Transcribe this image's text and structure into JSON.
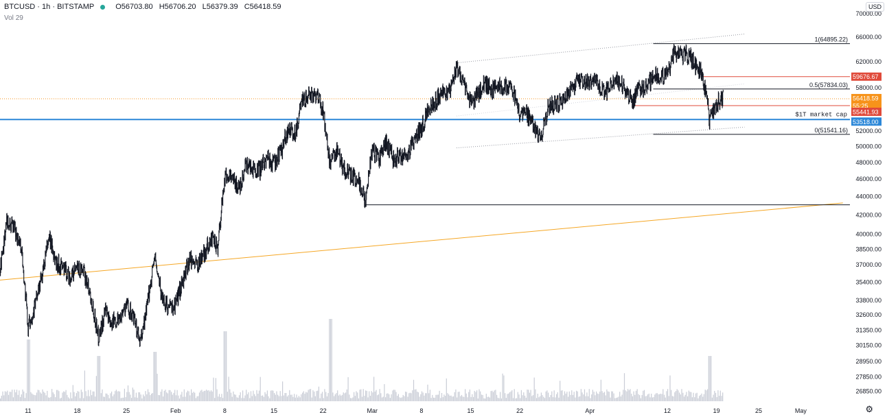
{
  "header": {
    "symbol": "BTCUSD",
    "interval": "1h",
    "exchange": "BITSTAMP",
    "status_color": "#26a69a",
    "ohlc": [
      {
        "key": "O",
        "value": "56703.80"
      },
      {
        "key": "H",
        "value": "56706.20"
      },
      {
        "key": "L",
        "value": "56379.39"
      },
      {
        "key": "C",
        "value": "56418.59"
      }
    ],
    "volume_label": "Vol",
    "volume_value": "29"
  },
  "currency_badge": "USD",
  "settings_icon": "gear-icon",
  "chart_data": {
    "type": "candlestick",
    "title": "",
    "price_axis": {
      "scale": "log",
      "tick_labels": [
        "70000.00",
        "66000.00",
        "62000.00",
        "58000.00",
        "56000.00",
        "52000.00",
        "50000.00",
        "48000.00",
        "46000.00",
        "44000.00",
        "42000.00",
        "40000.00",
        "38500.00",
        "37000.00",
        "35400.00",
        "33800.00",
        "32600.00",
        "31350.00",
        "30150.00",
        "28950.00",
        "27850.00",
        "26850.00"
      ],
      "range": [
        26400,
        71000
      ]
    },
    "time_axis": {
      "tick_labels": [
        "11",
        "18",
        "25",
        "Feb",
        "8",
        "15",
        "22",
        "Mar",
        "8",
        "15",
        "22",
        "Apr",
        "12",
        "19",
        "25",
        "May"
      ],
      "range": [
        "2021-01-07",
        "2021-05-08"
      ]
    },
    "price_path": [
      [
        "2021-01-07",
        36500
      ],
      [
        "2021-01-08",
        41500
      ],
      [
        "2021-01-09",
        40500
      ],
      [
        "2021-01-10",
        39000
      ],
      [
        "2021-01-11",
        31500
      ],
      [
        "2021-01-12",
        33500
      ],
      [
        "2021-01-13",
        36000
      ],
      [
        "2021-01-14",
        39800
      ],
      [
        "2021-01-15",
        37200
      ],
      [
        "2021-01-16",
        36800
      ],
      [
        "2021-01-17",
        35800
      ],
      [
        "2021-01-18",
        36600
      ],
      [
        "2021-01-19",
        36200
      ],
      [
        "2021-01-20",
        34000
      ],
      [
        "2021-01-21",
        30800
      ],
      [
        "2021-01-22",
        32800
      ],
      [
        "2021-01-23",
        32000
      ],
      [
        "2021-01-24",
        32400
      ],
      [
        "2021-01-25",
        33500
      ],
      [
        "2021-01-26",
        32300
      ],
      [
        "2021-01-27",
        30300
      ],
      [
        "2021-01-28",
        33500
      ],
      [
        "2021-01-29",
        37800
      ],
      [
        "2021-01-30",
        34200
      ],
      [
        "2021-01-31",
        33100
      ],
      [
        "2021-02-01",
        33500
      ],
      [
        "2021-02-02",
        35500
      ],
      [
        "2021-02-03",
        37600
      ],
      [
        "2021-02-04",
        37000
      ],
      [
        "2021-02-05",
        38000
      ],
      [
        "2021-02-06",
        39500
      ],
      [
        "2021-02-07",
        38800
      ],
      [
        "2021-02-08",
        46200
      ],
      [
        "2021-02-09",
        46500
      ],
      [
        "2021-02-10",
        44800
      ],
      [
        "2021-02-11",
        47800
      ],
      [
        "2021-02-12",
        47300
      ],
      [
        "2021-02-13",
        47100
      ],
      [
        "2021-02-14",
        48600
      ],
      [
        "2021-02-15",
        47800
      ],
      [
        "2021-02-16",
        49200
      ],
      [
        "2021-02-17",
        52200
      ],
      [
        "2021-02-18",
        51700
      ],
      [
        "2021-02-19",
        55900
      ],
      [
        "2021-02-20",
        56900
      ],
      [
        "2021-02-21",
        57200
      ],
      [
        "2021-02-22",
        54500
      ],
      [
        "2021-02-23",
        47500
      ],
      [
        "2021-02-24",
        49700
      ],
      [
        "2021-02-25",
        47000
      ],
      [
        "2021-02-26",
        46300
      ],
      [
        "2021-02-27",
        46100
      ],
      [
        "2021-02-28",
        43500
      ],
      [
        "2021-03-01",
        49600
      ],
      [
        "2021-03-02",
        48400
      ],
      [
        "2021-03-03",
        50500
      ],
      [
        "2021-03-04",
        48400
      ],
      [
        "2021-03-05",
        48800
      ],
      [
        "2021-03-06",
        48900
      ],
      [
        "2021-03-07",
        50900
      ],
      [
        "2021-03-08",
        52400
      ],
      [
        "2021-03-09",
        54900
      ],
      [
        "2021-03-10",
        56000
      ],
      [
        "2021-03-11",
        57800
      ],
      [
        "2021-03-12",
        57200
      ],
      [
        "2021-03-13",
        61200
      ],
      [
        "2021-03-14",
        59000
      ],
      [
        "2021-03-15",
        55600
      ],
      [
        "2021-03-16",
        56900
      ],
      [
        "2021-03-17",
        58900
      ],
      [
        "2021-03-18",
        57600
      ],
      [
        "2021-03-19",
        58300
      ],
      [
        "2021-03-20",
        58100
      ],
      [
        "2021-03-21",
        57400
      ],
      [
        "2021-03-22",
        54100
      ],
      [
        "2021-03-23",
        54300
      ],
      [
        "2021-03-24",
        52300
      ],
      [
        "2021-03-25",
        51300
      ],
      [
        "2021-03-26",
        55000
      ],
      [
        "2021-03-27",
        55800
      ],
      [
        "2021-03-28",
        55800
      ],
      [
        "2021-03-29",
        57600
      ],
      [
        "2021-03-30",
        58800
      ],
      [
        "2021-03-31",
        58800
      ],
      [
        "2021-04-01",
        58800
      ],
      [
        "2021-04-02",
        59000
      ],
      [
        "2021-04-03",
        57100
      ],
      [
        "2021-04-04",
        58200
      ],
      [
        "2021-04-05",
        59100
      ],
      [
        "2021-04-06",
        57900
      ],
      [
        "2021-04-07",
        56000
      ],
      [
        "2021-04-08",
        58100
      ],
      [
        "2021-04-09",
        58000
      ],
      [
        "2021-04-10",
        59800
      ],
      [
        "2021-04-11",
        59800
      ],
      [
        "2021-04-12",
        59900
      ],
      [
        "2021-04-13",
        63500
      ],
      [
        "2021-04-14",
        63100
      ],
      [
        "2021-04-15",
        63200
      ],
      [
        "2021-04-16",
        61400
      ],
      [
        "2021-04-17",
        60000
      ],
      [
        "2021-04-18",
        53500
      ],
      [
        "2021-04-19",
        55800
      ],
      [
        "2021-04-20",
        56418.59
      ]
    ],
    "price_labels": [
      {
        "value": "70000.00"
      },
      {
        "value": "59676.67",
        "color": "#e04a3a"
      },
      {
        "value": "56418.59",
        "color": "#f7931a"
      },
      {
        "value": "55:25",
        "color": "#f7931a"
      },
      {
        "value": "55441.93",
        "color": "#e04a3a"
      },
      {
        "value": "53518.00",
        "color": "#2b87d8"
      }
    ],
    "fib_levels": [
      {
        "label": "1(64895.22)",
        "price": 64895.22
      },
      {
        "label": "0.5(57834.03)",
        "price": 57834.03
      },
      {
        "label": "0(51541.16)",
        "price": 51541.16
      }
    ],
    "annotations": [
      {
        "text": "$1T market cap",
        "price": 53518.0
      }
    ],
    "horizontal_lines": [
      {
        "price": 59676.67,
        "color": "#e04a3a",
        "from": "2021-04-17"
      },
      {
        "price": 55441.93,
        "color": "#e04a3a",
        "from": "2021-04-07"
      },
      {
        "price": 53518.0,
        "color": "#2b87d8",
        "from": "2021-01-07"
      },
      {
        "price": 43100.0,
        "color": "#131722",
        "from": "2021-02-28"
      },
      {
        "price": 56418.59,
        "color": "#f7931a",
        "from": "2021-01-07",
        "dotted": true
      }
    ],
    "trend_lines": [
      {
        "from": [
          "2021-01-07",
          35600
        ],
        "to": [
          "2021-05-07",
          43300
        ],
        "color": "#f5a623"
      },
      {
        "from": [
          "2021-03-13",
          61800
        ],
        "to": [
          "2021-04-23",
          66500
        ],
        "color": "#9598a1",
        "dotted": true
      },
      {
        "from": [
          "2021-03-13",
          49800
        ],
        "to": [
          "2021-04-23",
          52500
        ],
        "color": "#9598a1",
        "dotted": true
      },
      {
        "from": [
          "2021-03-13",
          54000
        ],
        "to": [
          "2021-04-23",
          58600
        ],
        "color": "#d1d4dc",
        "dotted": true
      }
    ],
    "volume_spikes": [
      {
        "date": "2021-01-11",
        "value": 0.75
      },
      {
        "date": "2021-01-21",
        "value": 0.55
      },
      {
        "date": "2021-01-29",
        "value": 0.6
      },
      {
        "date": "2021-02-08",
        "value": 0.85
      },
      {
        "date": "2021-02-23",
        "value": 1.0
      },
      {
        "date": "2021-04-18",
        "value": 0.55
      }
    ],
    "colors": {
      "candles": "#131722",
      "volume": "#c9ccd6",
      "background": "#ffffff",
      "axis_text": "#131722"
    }
  }
}
